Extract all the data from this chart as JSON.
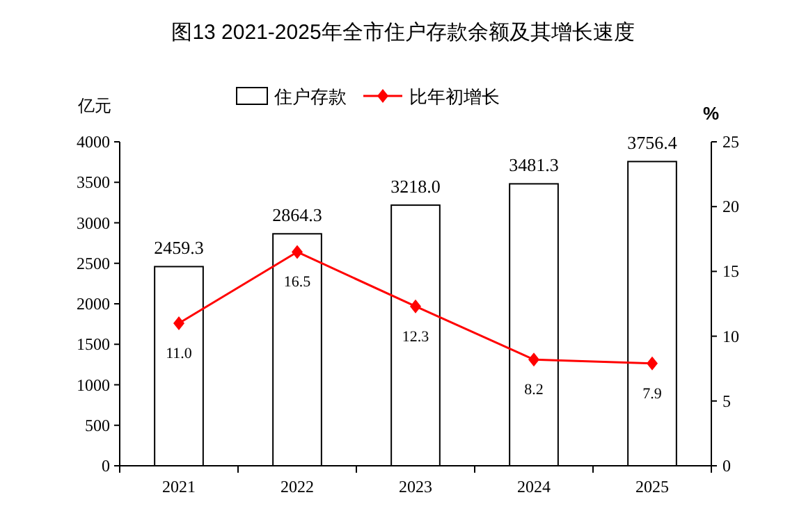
{
  "chart_data": {
    "type": "bar",
    "title": "图13  2021-2025年全市住户存款余额及其增长速度",
    "ylabel": "亿元",
    "y2label": "%",
    "legend": "top",
    "categories": [
      "2021",
      "2022",
      "2023",
      "2024",
      "2025"
    ],
    "series": [
      {
        "name": "住户存款",
        "color": "#ffffff",
        "values": [
          2459.3,
          2864.3,
          3218.0,
          3481.3,
          3756.4
        ],
        "value_labels": [
          "2459.3",
          "2864.3",
          "3218.0",
          "3481.3",
          "3756.4"
        ]
      },
      {
        "name": "比年初增长",
        "type": "line",
        "axis": "y2",
        "color": "#ff0000",
        "marker": "diamond",
        "values": [
          11.0,
          16.5,
          12.3,
          8.2,
          7.9
        ],
        "value_labels": [
          "11.0",
          "16.5",
          "12.3",
          "8.2",
          "7.9"
        ]
      }
    ],
    "ylim": [
      0,
      4000
    ],
    "yticks": [
      0,
      500,
      1000,
      1500,
      2000,
      2500,
      3000,
      3500,
      4000
    ],
    "y2lim": [
      0,
      25
    ],
    "y2ticks": [
      0,
      5,
      10,
      15,
      20,
      25
    ]
  }
}
